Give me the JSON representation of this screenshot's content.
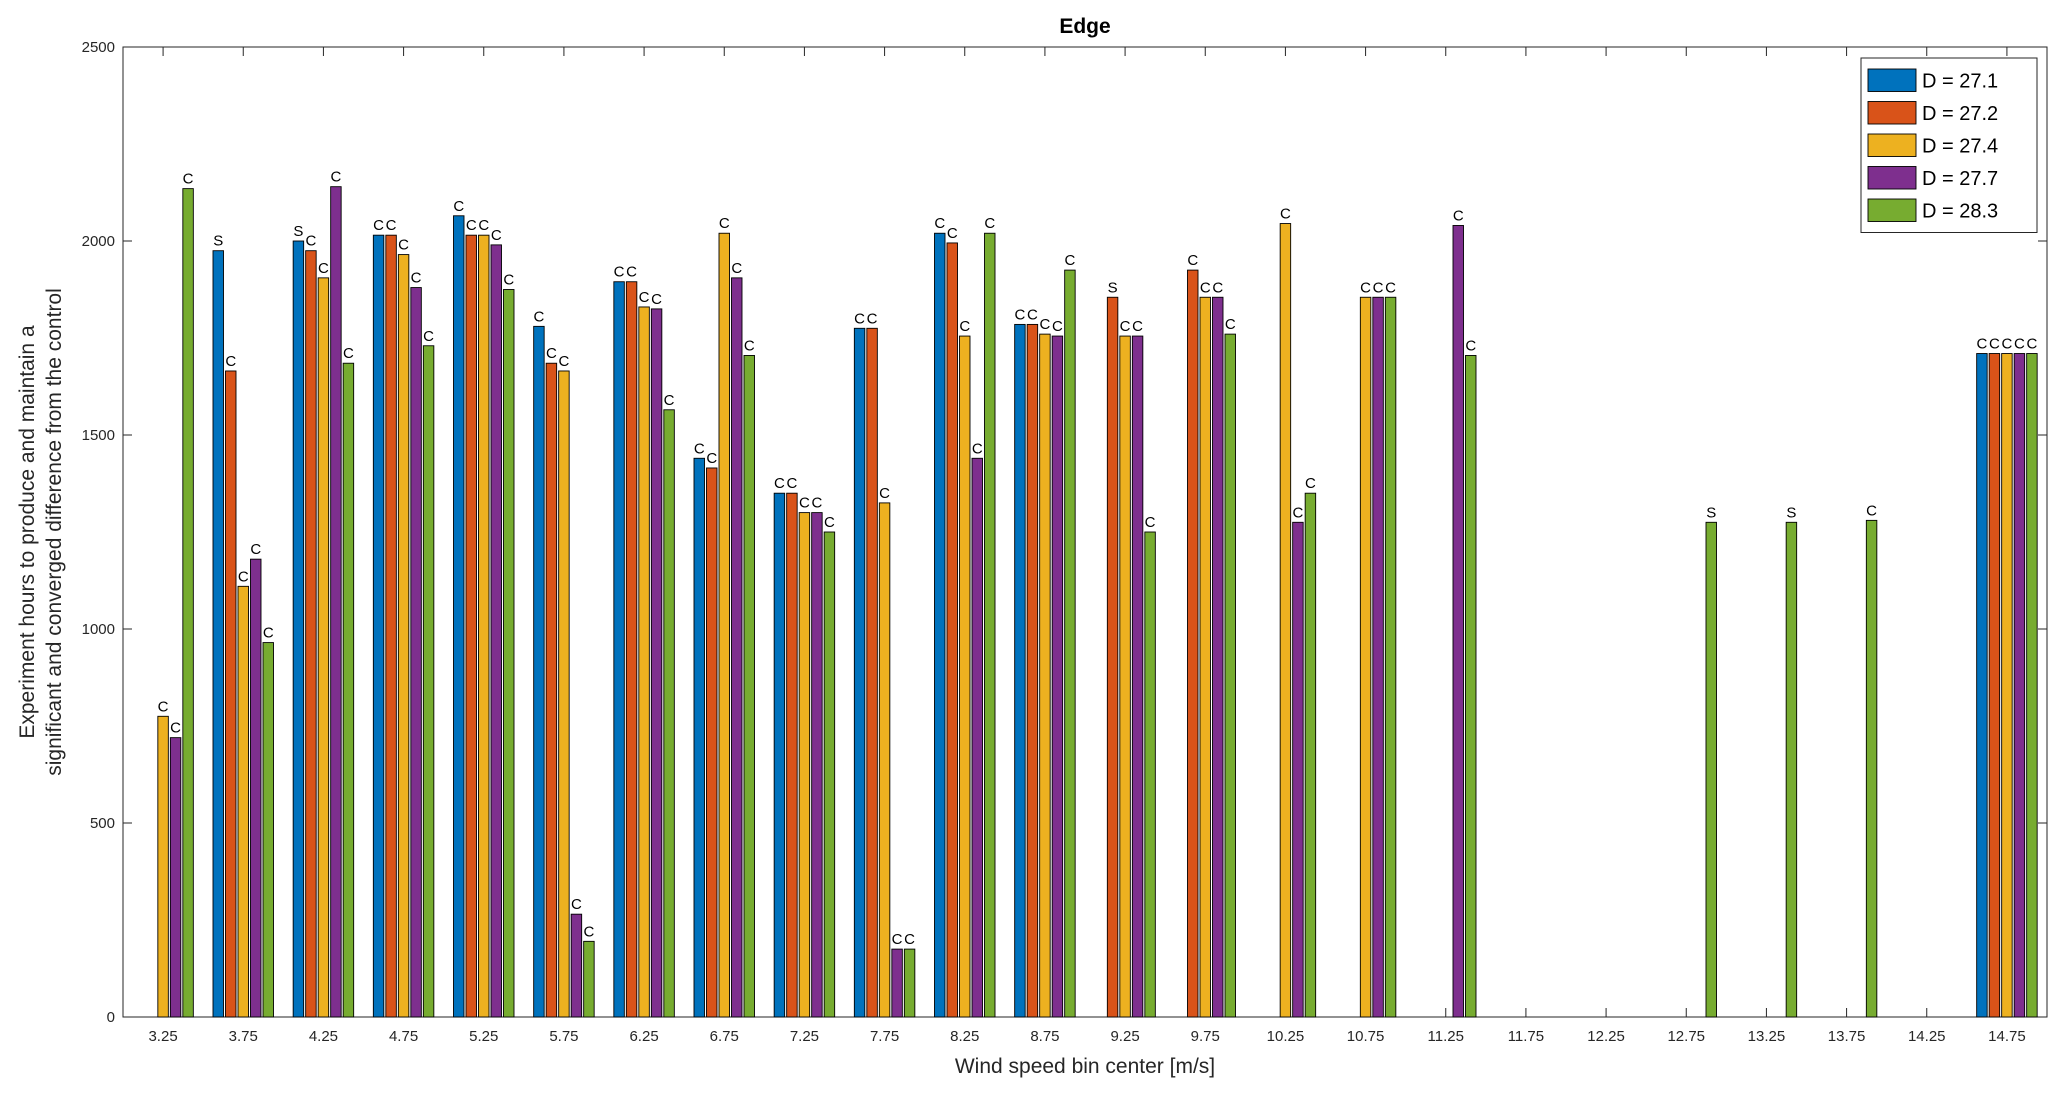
{
  "chart_data": {
    "type": "bar",
    "title": "Edge",
    "xlabel": "Wind speed bin center [m/s]",
    "ylabel_lines": [
      "Experiment hours to produce and maintain a",
      "significant and converged difference from the control"
    ],
    "ylim": [
      0,
      2500
    ],
    "yticks": [
      0,
      500,
      1000,
      1500,
      2000,
      2500
    ],
    "grid": false,
    "legend_position": "top-right",
    "categories": [
      "3.25",
      "3.75",
      "4.25",
      "4.75",
      "5.25",
      "5.75",
      "6.25",
      "6.75",
      "7.25",
      "7.75",
      "8.25",
      "8.75",
      "9.25",
      "9.75",
      "10.25",
      "10.75",
      "11.25",
      "11.75",
      "12.25",
      "12.75",
      "13.25",
      "13.75",
      "14.25",
      "14.75"
    ],
    "series": [
      {
        "name": "D = 27.1",
        "color": "#0072BD",
        "values": [
          null,
          1975,
          2000,
          2015,
          2065,
          1780,
          1895,
          1440,
          1350,
          1775,
          2020,
          1785,
          null,
          null,
          null,
          null,
          null,
          null,
          null,
          null,
          null,
          null,
          null,
          1710
        ],
        "labels": [
          "",
          "S",
          "S",
          "C",
          "C",
          "C",
          "C",
          "C",
          "C",
          "C",
          "C",
          "C",
          "",
          "",
          "",
          "",
          "",
          "",
          "",
          "",
          "",
          "",
          "",
          "C"
        ]
      },
      {
        "name": "D = 27.2",
        "color": "#D95319",
        "values": [
          null,
          1665,
          1975,
          2015,
          2015,
          1685,
          1895,
          1415,
          1350,
          1775,
          1995,
          1785,
          1855,
          1925,
          null,
          null,
          null,
          null,
          null,
          null,
          null,
          null,
          null,
          1710
        ],
        "labels": [
          "",
          "C",
          "C",
          "C",
          "C",
          "C",
          "C",
          "C",
          "C",
          "C",
          "C",
          "C",
          "S",
          "C",
          "",
          "",
          "",
          "",
          "",
          "",
          "",
          "",
          "",
          "C"
        ]
      },
      {
        "name": "D = 27.4",
        "color": "#EDB120",
        "values": [
          775,
          1110,
          1905,
          1965,
          2015,
          1665,
          1830,
          2020,
          1300,
          1325,
          1755,
          1760,
          1755,
          1855,
          2045,
          1855,
          null,
          null,
          null,
          null,
          null,
          null,
          null,
          1710
        ],
        "labels": [
          "C",
          "C",
          "C",
          "C",
          "C",
          "C",
          "C",
          "C",
          "C",
          "C",
          "C",
          "C",
          "C",
          "C",
          "C",
          "C",
          "",
          "",
          "",
          "",
          "",
          "",
          "",
          "C"
        ]
      },
      {
        "name": "D = 27.7",
        "color": "#7E2F8E",
        "values": [
          720,
          1180,
          2140,
          1880,
          1990,
          265,
          1825,
          1905,
          1300,
          175,
          1440,
          1755,
          1755,
          1855,
          1275,
          1855,
          2040,
          null,
          null,
          null,
          null,
          null,
          null,
          1710
        ],
        "labels": [
          "C",
          "C",
          "C",
          "C",
          "C",
          "C",
          "C",
          "C",
          "C",
          "C",
          "C",
          "C",
          "C",
          "C",
          "C",
          "C",
          "C",
          "",
          "",
          "",
          "",
          "",
          "",
          "C"
        ]
      },
      {
        "name": "D = 28.3",
        "color": "#77AC30",
        "values": [
          2135,
          965,
          1685,
          1730,
          1875,
          195,
          1565,
          1705,
          1250,
          175,
          2020,
          1925,
          1250,
          1760,
          1350,
          1855,
          1705,
          null,
          null,
          1275,
          1275,
          1280,
          null,
          1710
        ],
        "labels": [
          "C",
          "C",
          "C",
          "C",
          "C",
          "C",
          "C",
          "C",
          "C",
          "C",
          "C",
          "C",
          "C",
          "C",
          "C",
          "C",
          "C",
          "",
          "",
          "S",
          "S",
          "C",
          "",
          "C"
        ]
      }
    ]
  }
}
